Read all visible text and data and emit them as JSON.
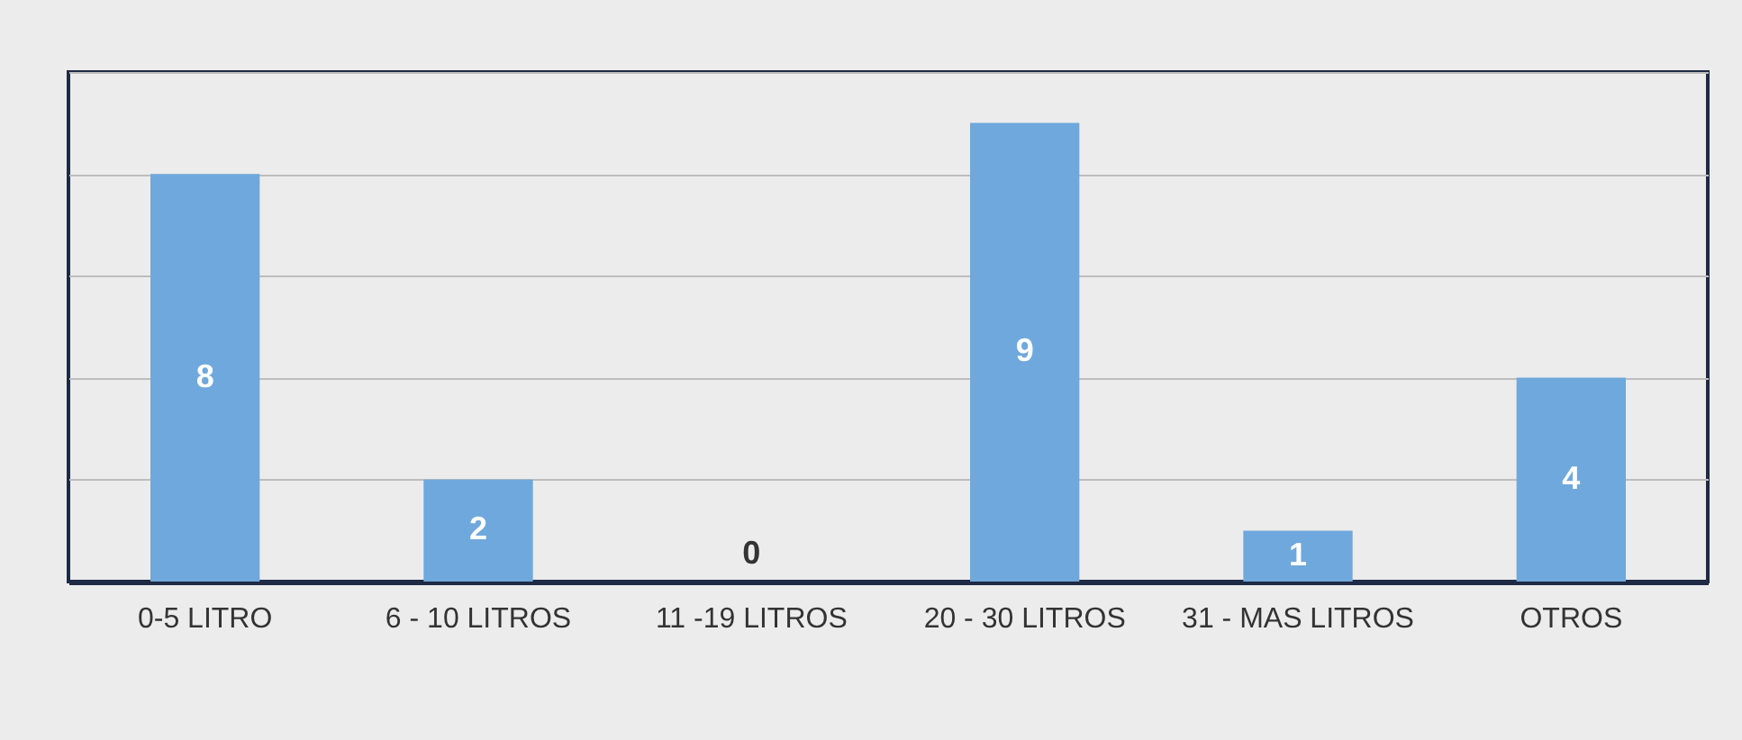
{
  "chart_data": {
    "type": "bar",
    "categories": [
      "0-5 LITRO",
      "6 - 10 LITROS",
      "11 -19 LITROS",
      "20 - 30 LITROS",
      "31 - MAS LITROS",
      "OTROS"
    ],
    "values": [
      8,
      2,
      0,
      9,
      1,
      4
    ],
    "color": "#6fa8dc",
    "data_labels": true,
    "ylim": [
      0,
      10
    ],
    "yticks": [
      {
        "value": 0,
        "label": null
      },
      {
        "value": 2,
        "label": null
      },
      {
        "value": 4,
        "label": null
      },
      {
        "value": 6,
        "label": null
      },
      {
        "value": 8,
        "label": null
      },
      {
        "value": 10,
        "label": null
      }
    ],
    "grid": "y",
    "tick_labels": "x"
  }
}
